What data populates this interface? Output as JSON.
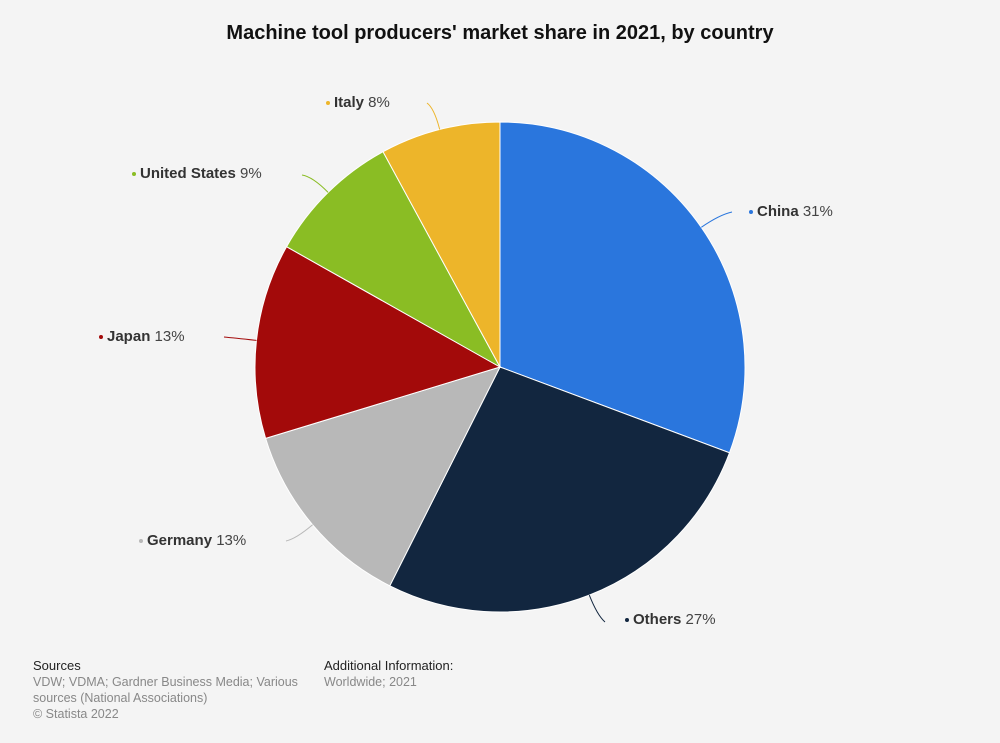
{
  "chart_data": {
    "type": "pie",
    "title": "Machine tool producers' market share in 2021, by country",
    "unit": "%",
    "slices": [
      {
        "label": "China",
        "value": 31,
        "color": "#2a76dd"
      },
      {
        "label": "Others",
        "value": 27,
        "color": "#12263f"
      },
      {
        "label": "Germany",
        "value": 13,
        "color": "#b8b8b8"
      },
      {
        "label": "Japan",
        "value": 13,
        "color": "#a30a0a"
      },
      {
        "label": "United States",
        "value": 9,
        "color": "#8abd24"
      },
      {
        "label": "Italy",
        "value": 8,
        "color": "#edb52a"
      }
    ]
  },
  "footer": {
    "sources_heading": "Sources",
    "sources_text": "VDW; VDMA; Gardner Business Media; Various sources (National Associations)",
    "copyright": "© Statista 2022",
    "additional_heading": "Additional Information:",
    "additional_text": "Worldwide; 2021"
  }
}
